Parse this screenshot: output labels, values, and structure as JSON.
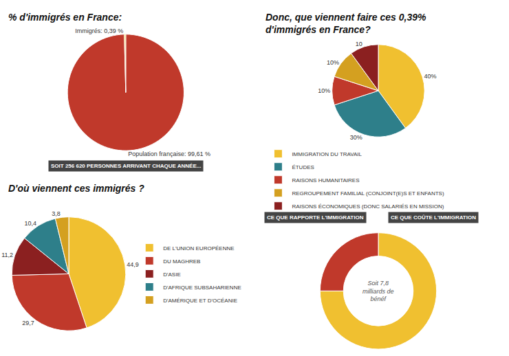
{
  "chart_data": [
    {
      "type": "pie",
      "title": "% d'immigrés en France:",
      "values": [
        99.61,
        0.39
      ],
      "value_labels": [
        "Population française: 99,61 %",
        "Immigrés: 0,39 %"
      ],
      "colors": [
        "#c0392b",
        "#f0c040"
      ],
      "data_labels": true,
      "annotations": [
        "SOIT 256 620 PERSONNES ARRIVANT CHAQUE ANNÉE..."
      ]
    },
    {
      "type": "pie",
      "title": "Donc, que viennent faire ces 0,39%\nd'immigrés en France?",
      "categories": [
        "IMMIGRATION DU TRAVAIL",
        "ÉTUDES",
        "RAISONS HUMANITAIRES",
        "REGROUPEMENT FAMILIAL (CONJOINT(E)S ET ENFANTS)",
        "RAISONS ÉCONOMIQUES (DONC SALARIÉS EN MISSION)"
      ],
      "values": [
        40,
        30,
        10,
        10,
        10
      ],
      "value_labels": [
        "40%",
        "30%",
        "10%",
        "10%",
        "10"
      ],
      "colors": [
        "#f0c030",
        "#2e7f8a",
        "#c0392b",
        "#d4a020",
        "#8b2020"
      ],
      "data_labels": true,
      "legend": "bottom",
      "annotations": [
        "CE QUE RAPPORTE L'IMMIGRATION",
        "CE QUE COÛTE L'IMMIGRATION"
      ]
    },
    {
      "type": "pie",
      "title": "D'où viennent ces immigrés ?",
      "categories": [
        "DE L'UNION EUROPÉENNE",
        "DU MAGHREB",
        "D'ASIE",
        "D'AFRIQUE SUBSAHARIENNE",
        "D'AMÉRIQUE ET D'OCÉANIE"
      ],
      "values": [
        44.9,
        29.7,
        11.2,
        10.4,
        3.8
      ],
      "value_labels": [
        "44,9",
        "29,7",
        "11,2",
        "10,4",
        "3,8"
      ],
      "colors": [
        "#f0c030",
        "#c0392b",
        "#8b2020",
        "#2e7f8a",
        "#d4a020"
      ],
      "data_labels": true,
      "legend": "right"
    },
    {
      "type": "donut",
      "values": [
        75,
        25
      ],
      "colors": [
        "#f0c030",
        "#c0392b"
      ],
      "data_labels": false,
      "annotations": [
        "Soit 7,8 milliards de bénéf"
      ]
    }
  ]
}
